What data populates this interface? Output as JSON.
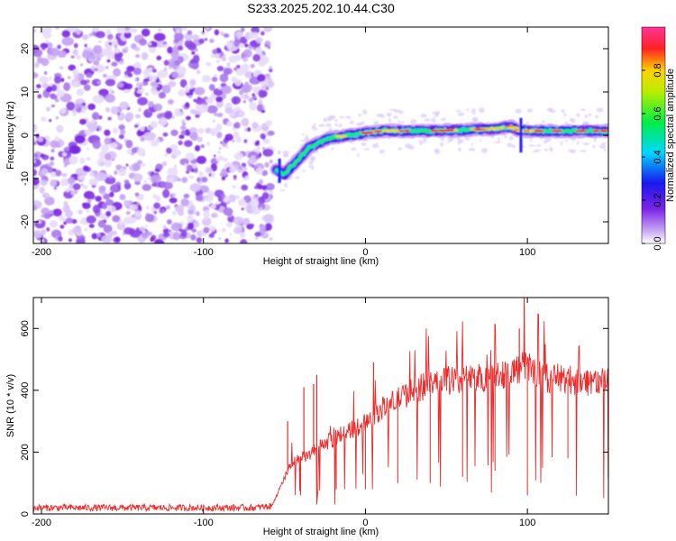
{
  "figure_title": "S233.2025.202.10.44.C30",
  "chart_data": [
    {
      "type": "heatmap",
      "title": "S233.2025.202.10.44.C30",
      "xlabel": "Height of straight line (km)",
      "ylabel": "Frequency (Hz)",
      "xlim": [
        -205,
        150
      ],
      "ylim": [
        -25,
        25
      ],
      "x_ticks": [
        -200,
        -100,
        0,
        100
      ],
      "y_ticks": [
        -20,
        -10,
        0,
        10,
        20
      ],
      "colorbar": {
        "label": "Normalized spectral amplitude",
        "range": [
          0,
          1
        ],
        "ticks": [
          "0.0",
          "0.2",
          "0.4",
          "0.6",
          "0.8"
        ],
        "colormap": "rainbow (white-violet-blue-cyan-green-yellow-red-magenta)"
      },
      "noise_region_x": [
        -205,
        -58
      ],
      "ridge": {
        "description": "spectral peak frequency vs height",
        "x": [
          -55,
          -50,
          -45,
          -40,
          -35,
          -30,
          -25,
          -20,
          -10,
          0,
          10,
          20,
          40,
          60,
          80,
          90,
          95,
          100,
          120,
          150
        ],
        "y": [
          -8,
          -9,
          -7,
          -5,
          -3,
          -2,
          -1,
          -0.5,
          0,
          0.5,
          1,
          1,
          1,
          1.2,
          1.5,
          2,
          1,
          1,
          1,
          1
        ],
        "spikes": [
          {
            "x": 96,
            "y": -4
          },
          {
            "x": -53,
            "y": -11
          }
        ]
      },
      "grid": false
    },
    {
      "type": "line",
      "xlabel": "Height of straight line (km)",
      "ylabel": "SNR (10 * v/v)",
      "xlim": [
        -205,
        150
      ],
      "ylim": [
        0,
        700
      ],
      "x_ticks": [
        -200,
        -100,
        0,
        100
      ],
      "y_ticks": [
        0,
        200,
        400,
        600
      ],
      "color": "#ee2a2a",
      "grid": false,
      "series": [
        {
          "x": [
            -205,
            -150,
            -100,
            -70,
            -58,
            -52,
            -48,
            -44,
            -40,
            -35,
            -30,
            -25,
            -20,
            -15,
            -10,
            -5,
            0,
            5,
            10,
            20,
            30,
            40,
            50,
            60,
            70,
            80,
            90,
            100,
            110,
            120,
            130,
            140,
            150
          ],
          "y": [
            20,
            20,
            20,
            20,
            25,
            90,
            140,
            170,
            180,
            190,
            210,
            230,
            240,
            260,
            270,
            280,
            300,
            320,
            340,
            370,
            400,
            420,
            430,
            440,
            440,
            450,
            460,
            480,
            440,
            440,
            430,
            430,
            430
          ]
        }
      ],
      "dropouts": [
        {
          "x": -40,
          "y": 60
        },
        {
          "x": -30,
          "y": 60
        },
        {
          "x": -18,
          "y": 80
        },
        {
          "x": 0,
          "y": 80
        },
        {
          "x": 20,
          "y": 100
        },
        {
          "x": 40,
          "y": 100
        },
        {
          "x": 60,
          "y": 120
        },
        {
          "x": 80,
          "y": 140
        },
        {
          "x": 100,
          "y": 60
        },
        {
          "x": 125,
          "y": 180
        }
      ],
      "peaks": [
        {
          "x": -48,
          "y": 300
        },
        {
          "x": -38,
          "y": 410
        },
        {
          "x": -32,
          "y": 420
        },
        {
          "x": -30,
          "y": 450
        },
        {
          "x": 5,
          "y": 490
        },
        {
          "x": 95,
          "y": 600
        },
        {
          "x": 98,
          "y": 700
        }
      ]
    }
  ]
}
